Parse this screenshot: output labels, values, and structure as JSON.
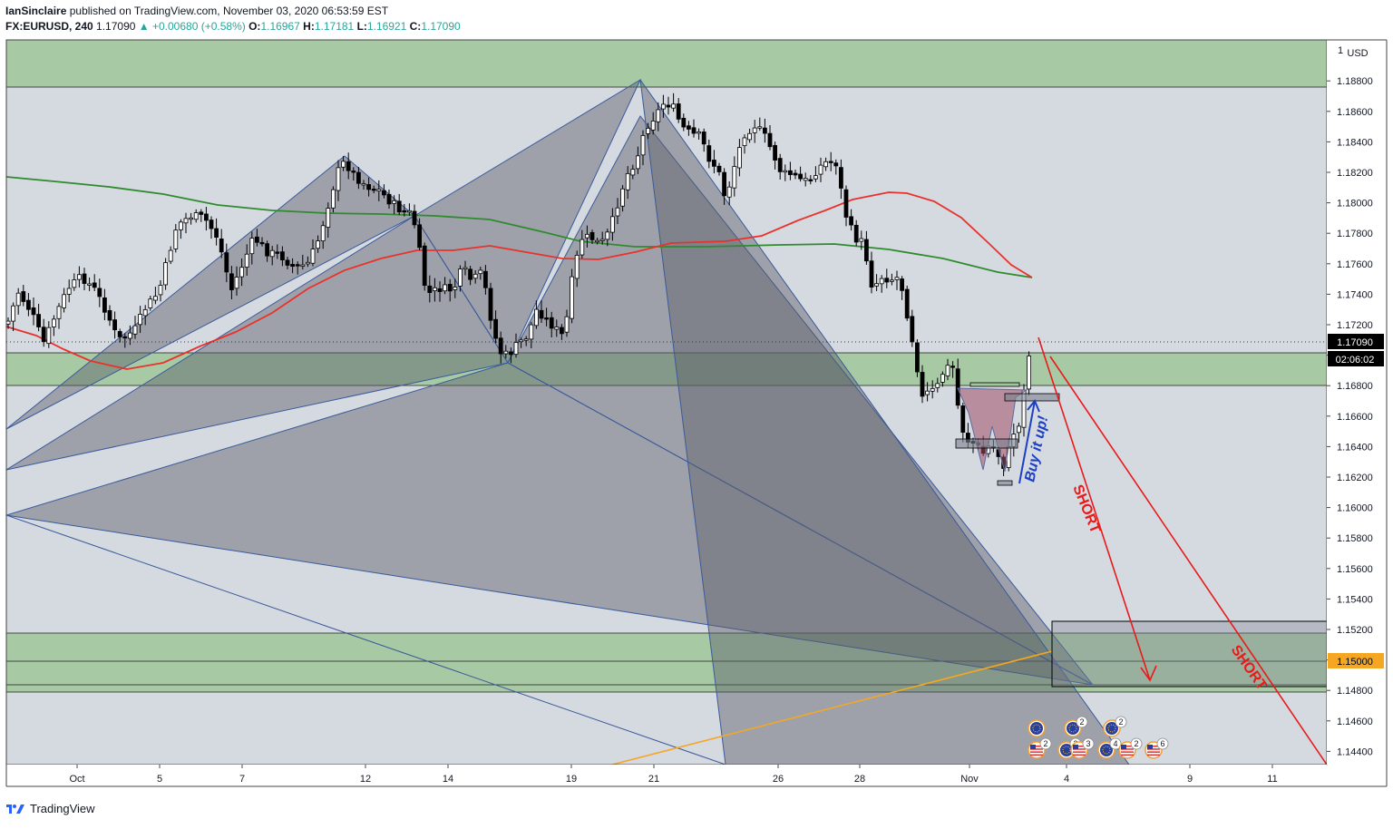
{
  "header": {
    "author": "IanSinclaire",
    "published_text": "published on TradingView.com, November 03, 2020 06:53:59 EST",
    "symbol": "FX:EURUSD, 240",
    "last": "1.17090",
    "change": "▲ +0.00680 (+0.58%)",
    "o_label": "O:",
    "o_value": "1.16967",
    "h_label": "H:",
    "h_value": "1.17181",
    "l_label": "L:",
    "l_value": "1.16921",
    "c_label": "C:",
    "c_value": "1.17090"
  },
  "footer": {
    "brand": "TradingView"
  },
  "colors": {
    "plot_bg": "#d5d9e0",
    "zone_green": "#9fc79a",
    "pattern_fill": "#5a5e68",
    "ma_green": "#2e8b2e",
    "ma_red": "#e8322a",
    "orange_line": "#f5a623",
    "short_red": "#e81a1a",
    "blue_arrow": "#1c3fc4"
  },
  "chart_data": {
    "type": "candlestick",
    "symbol": "FX:EURUSD",
    "interval": "240",
    "price_axis": {
      "currency": "USD",
      "ticks": [
        "1.18800",
        "1.18600",
        "1.18400",
        "1.18200",
        "1.18000",
        "1.17800",
        "1.17600",
        "1.17400",
        "1.17200",
        "1.17000",
        "1.16800",
        "1.16600",
        "1.16400",
        "1.16200",
        "1.16000",
        "1.15800",
        "1.15600",
        "1.15400",
        "1.15200",
        "1.15000",
        "1.14800",
        "1.14600",
        "1.14400"
      ],
      "ylim": [
        1.1431,
        1.1893
      ],
      "last_price_label": "1.17090",
      "countdown_label": "02:06:02",
      "target_label": "1.15000"
    },
    "time_axis": {
      "ticks": [
        "Oct",
        "5",
        "7",
        "12",
        "14",
        "19",
        "21",
        "26",
        "28",
        "Nov",
        "4",
        "9",
        "11"
      ]
    },
    "annotations": [
      {
        "text": "Buy it up!",
        "color": "#1c3fc4"
      },
      {
        "text": "SHORT",
        "color": "#e81a1a"
      },
      {
        "text": "SHORT",
        "color": "#e81a1a"
      }
    ],
    "events": [
      {
        "flag": "eu",
        "count": ""
      },
      {
        "flag": "eu",
        "count": "2"
      },
      {
        "flag": "eu",
        "count": "2"
      },
      {
        "flag": "us",
        "count": "2"
      },
      {
        "flag": "eu",
        "count": "3"
      },
      {
        "flag": "us",
        "count": "3"
      },
      {
        "flag": "eu",
        "count": "4"
      },
      {
        "flag": "us",
        "count": "2"
      },
      {
        "flag": "us",
        "count": "6"
      }
    ]
  }
}
